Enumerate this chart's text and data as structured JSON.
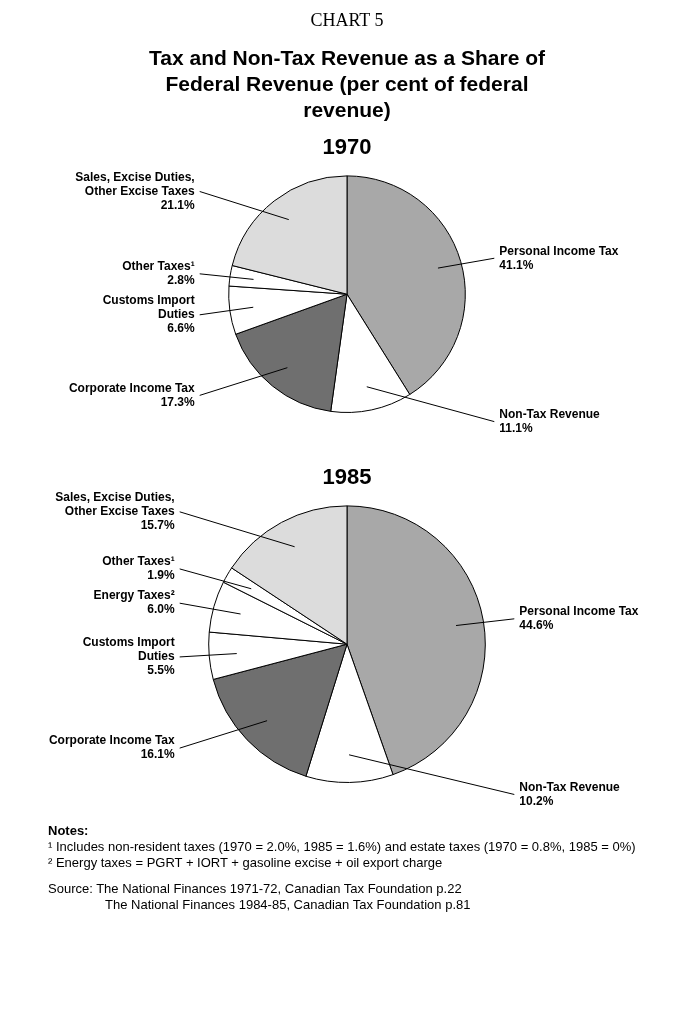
{
  "chart_data": [
    {
      "type": "other",
      "title": "CHART 5",
      "subtitle": "Tax and Non-Tax Revenue as a Share of Federal Revenue (per cent of federal revenue)"
    },
    {
      "type": "pie",
      "title": "1970",
      "categories": [
        "Personal Income Tax",
        "Non-Tax Revenue",
        "Corporate Income Tax",
        "Customs Import Duties",
        "Other Taxes¹",
        "Sales, Excise Duties, Other Excise Taxes"
      ],
      "values": [
        41.1,
        11.1,
        17.3,
        6.6,
        2.8,
        21.1
      ],
      "value_labels": [
        "41.1%",
        "11.1%",
        "17.3%",
        "6.6%",
        "2.8%",
        "21.1%"
      ],
      "colors": [
        "#a8a8a8",
        "#ffffff",
        "#6f6f6f",
        "#ffffff",
        "#ffffff",
        "#dcdcdc"
      ]
    },
    {
      "type": "pie",
      "title": "1985",
      "categories": [
        "Personal Income Tax",
        "Non-Tax Revenue",
        "Corporate Income Tax",
        "Customs Import Duties",
        "Energy Taxes²",
        "Other Taxes¹",
        "Sales, Excise Duties, Other Excise Taxes"
      ],
      "values": [
        44.6,
        10.2,
        16.1,
        5.5,
        6.0,
        1.9,
        15.7
      ],
      "value_labels": [
        "44.6%",
        "10.2%",
        "16.1%",
        "5.5%",
        "6.0%",
        "1.9%",
        "15.7%"
      ],
      "colors": [
        "#a8a8a8",
        "#ffffff",
        "#6f6f6f",
        "#ffffff",
        "#ffffff",
        "#ffffff",
        "#dcdcdc"
      ],
      "annotations": [
        "Notes:",
        "¹ Includes non-resident taxes (1970 = 2.0%, 1985 = 1.6%) and estate taxes (1970 = 0.8%, 1985 = 0%)",
        "² Energy taxes = PGRT + IORT + gasoline excise + oil export charge",
        "Source: The National Finances 1971-72, Canadian Tax Foundation p.22",
        "The National Finances 1984-85, Canadian Tax Foundation p.81"
      ]
    }
  ]
}
